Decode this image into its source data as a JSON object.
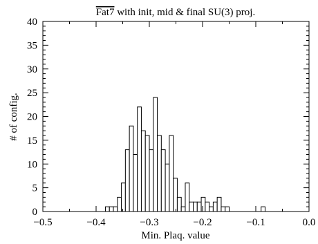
{
  "chart_data": {
    "type": "bar",
    "title_overlined": "Fat7",
    "title_rest": " with init, mid & final SU(3) proj.",
    "xlabel": "Min. Plaq. value",
    "ylabel": "# of config.",
    "xlim": [
      -0.5,
      0.0
    ],
    "ylim": [
      0,
      40
    ],
    "x_ticks": [
      -0.5,
      -0.4,
      -0.3,
      -0.2,
      -0.1,
      0.0
    ],
    "x_tick_labels": [
      "−0.5",
      "−0.4",
      "−0.3",
      "−0.2",
      "−0.1",
      "0.0"
    ],
    "y_ticks": [
      0,
      5,
      10,
      15,
      20,
      25,
      30,
      35,
      40
    ],
    "y_tick_labels": [
      "0",
      "5",
      "10",
      "15",
      "20",
      "25",
      "30",
      "35",
      "40"
    ],
    "bin_width": 0.0075,
    "bins": [
      {
        "x": -0.3825,
        "value": 1
      },
      {
        "x": -0.375,
        "value": 1
      },
      {
        "x": -0.3675,
        "value": 1
      },
      {
        "x": -0.36,
        "value": 3
      },
      {
        "x": -0.3525,
        "value": 6
      },
      {
        "x": -0.345,
        "value": 13
      },
      {
        "x": -0.3375,
        "value": 18
      },
      {
        "x": -0.33,
        "value": 12
      },
      {
        "x": -0.3225,
        "value": 22
      },
      {
        "x": -0.315,
        "value": 17
      },
      {
        "x": -0.3075,
        "value": 16
      },
      {
        "x": -0.3,
        "value": 13
      },
      {
        "x": -0.2925,
        "value": 24
      },
      {
        "x": -0.285,
        "value": 16
      },
      {
        "x": -0.2775,
        "value": 13
      },
      {
        "x": -0.27,
        "value": 10
      },
      {
        "x": -0.2625,
        "value": 16
      },
      {
        "x": -0.255,
        "value": 7
      },
      {
        "x": -0.2475,
        "value": 3
      },
      {
        "x": -0.24,
        "value": 1
      },
      {
        "x": -0.2325,
        "value": 6
      },
      {
        "x": -0.225,
        "value": 2
      },
      {
        "x": -0.2175,
        "value": 2
      },
      {
        "x": -0.21,
        "value": 2
      },
      {
        "x": -0.2025,
        "value": 3
      },
      {
        "x": -0.195,
        "value": 2
      },
      {
        "x": -0.1875,
        "value": 1
      },
      {
        "x": -0.18,
        "value": 2
      },
      {
        "x": -0.1725,
        "value": 3
      },
      {
        "x": -0.165,
        "value": 1
      },
      {
        "x": -0.1575,
        "value": 1
      },
      {
        "x": -0.09,
        "value": 1
      }
    ]
  }
}
